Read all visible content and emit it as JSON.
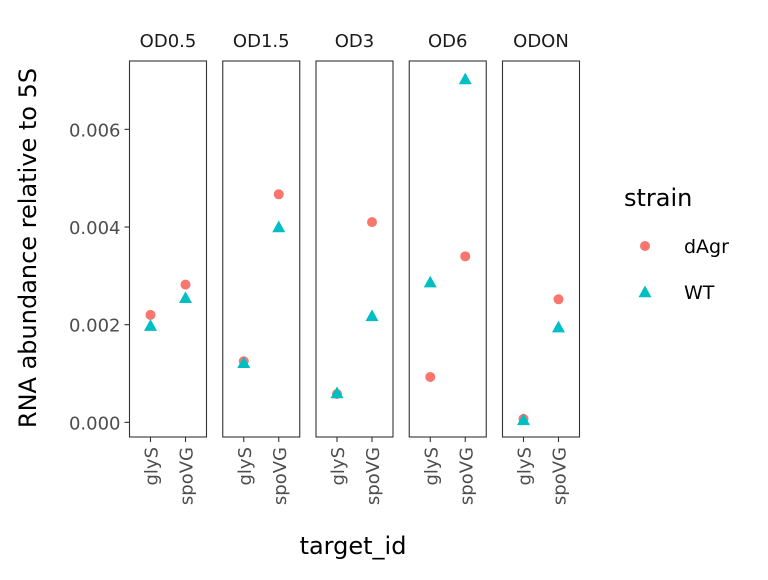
{
  "chart_data": {
    "type": "scatter",
    "ylabel": "RNA abundance relative to 5S",
    "xlabel": "target_id",
    "ylim": [
      -0.0003,
      0.0074
    ],
    "y_ticks": [
      "0.000",
      "0.002",
      "0.004",
      "0.006"
    ],
    "y_tick_values": [
      0,
      0.002,
      0.004,
      0.006
    ],
    "categories": [
      "glyS",
      "spoVG"
    ],
    "panels": [
      "OD0.5",
      "OD1.5",
      "OD3",
      "OD6",
      "ODON"
    ],
    "legend": {
      "title": "strain",
      "position": "right"
    },
    "series": [
      {
        "name": "dAgr",
        "color": "#F8766D",
        "shape": "circle",
        "values": {
          "OD0.5": [
            0.0022,
            0.00282
          ],
          "OD1.5": [
            0.00125,
            0.00467
          ],
          "OD3": [
            0.00058,
            0.0041
          ],
          "OD6": [
            0.00093,
            0.0034
          ],
          "ODON": [
            7e-05,
            0.00252
          ]
        }
      },
      {
        "name": "WT",
        "color": "#00BFC4",
        "shape": "triangle",
        "values": {
          "OD0.5": [
            0.00198,
            0.00255
          ],
          "OD1.5": [
            0.00122,
            0.004
          ],
          "OD3": [
            0.0006,
            0.00218
          ],
          "OD6": [
            0.00287,
            0.00703
          ],
          "ODON": [
            5e-05,
            0.00195
          ]
        }
      }
    ]
  }
}
